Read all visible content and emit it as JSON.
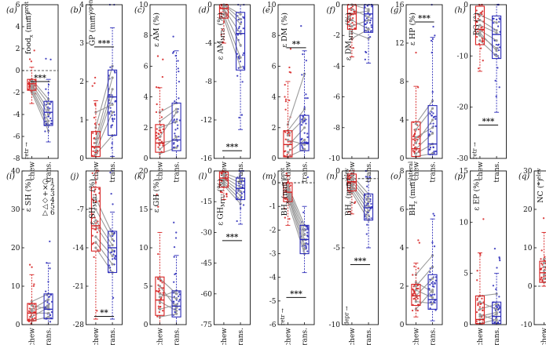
{
  "chart_data": {
    "type": "box",
    "categories": [
      "chew",
      "trans."
    ],
    "colors": {
      "chew": "#d62020",
      "trans.": "#2b2bb8",
      "link": "#9a9a9a"
    },
    "legend": {
      "placement": "top-right",
      "panel": "i",
      "entries": [
        "1",
        "2",
        "3",
        "4",
        "5",
        "6"
      ]
    },
    "panels": [
      {
        "label": "(a)",
        "ylabel": "food",
        "ysub": "x",
        "yunit": " (mm)",
        "ylim": [
          -8,
          6
        ],
        "ticks": [
          -8,
          -6,
          -4,
          -2,
          0,
          2,
          4,
          6
        ],
        "dashed": 0,
        "sig": {
          "text": "***",
          "y": -1
        },
        "dirTop": "prot",
        "dirBottom": "retr",
        "boxes": [
          {
            "q1": -1.8,
            "med": -1.2,
            "q3": -0.8,
            "wlo": -3,
            "whi": 0.3
          },
          {
            "q1": -5,
            "med": -3.8,
            "q3": -2.8,
            "wlo": -6.5,
            "whi": -0.8
          }
        ],
        "pairs": [
          [
            -0.8,
            -2.6
          ],
          [
            -1,
            -3
          ],
          [
            -1.2,
            -3.6
          ],
          [
            -1.4,
            -4
          ],
          [
            -1.6,
            -4.6
          ],
          [
            -1.8,
            -5
          ],
          [
            -2,
            -5.5
          ]
        ]
      },
      {
        "label": "(b)",
        "ylabel": "GP",
        "ysub": "",
        "yunit": " (mm)",
        "ylim": [
          0,
          4
        ],
        "ticks": [
          0,
          1,
          2,
          3,
          4
        ],
        "dashed": null,
        "sig": {
          "text": "***",
          "y": 2.9
        },
        "dirTop": "open",
        "dirBottom": "",
        "boxes": [
          {
            "q1": 0.05,
            "med": 0.3,
            "q3": 0.7,
            "wlo": 0,
            "whi": 1.5
          },
          {
            "q1": 0.6,
            "med": 1.6,
            "q3": 2.3,
            "wlo": 0.05,
            "whi": 3.4
          }
        ],
        "pairs": [
          [
            0.1,
            0.6
          ],
          [
            0.2,
            1.2
          ],
          [
            0.3,
            1.6
          ],
          [
            0.4,
            1.8
          ],
          [
            0.5,
            2.1
          ],
          [
            0.8,
            2.4
          ],
          [
            1.2,
            1.4
          ]
        ]
      },
      {
        "label": "(c)",
        "ylabel": "ε AM",
        "ysub": "",
        "yunit": " (%)",
        "ylim": [
          0,
          10
        ],
        "ticks": [
          0,
          2,
          4,
          6,
          8,
          10
        ],
        "dashed": null,
        "sig": null,
        "dirTop": "",
        "dirBottom": "",
        "boxes": [
          {
            "q1": 0.4,
            "med": 1,
            "q3": 2.2,
            "wlo": 0,
            "whi": 4.6
          },
          {
            "q1": 0.5,
            "med": 1.2,
            "q3": 3.6,
            "wlo": 0,
            "whi": 7
          }
        ],
        "pairs": [
          [
            0.3,
            0.7
          ],
          [
            0.6,
            1.4
          ],
          [
            1,
            1.2
          ],
          [
            1.4,
            3
          ],
          [
            2,
            2.4
          ],
          [
            2.4,
            3.2
          ],
          [
            3,
            3.6
          ]
        ]
      },
      {
        "label": "(d)",
        "ylabel": "ε AM",
        "ysub": "MTU",
        "yunit": " (%)",
        "ylim": [
          -16,
          0
        ],
        "ticks": [
          -16,
          -12,
          -8,
          -4,
          0
        ],
        "dashed": null,
        "sig": {
          "text": "***",
          "y": -15.2
        },
        "dirTop": "",
        "dirBottom": "",
        "boxes": [
          {
            "q1": -1.4,
            "med": -0.4,
            "q3": 0,
            "wlo": -4,
            "whi": 0
          },
          {
            "q1": -6.8,
            "med": -3,
            "q3": -0.8,
            "wlo": -13,
            "whi": 0
          }
        ],
        "pairs": [
          [
            0,
            -1
          ],
          [
            0,
            -1.5
          ],
          [
            -0.2,
            -2
          ],
          [
            -0.4,
            -3
          ],
          [
            -0.6,
            -4.2
          ],
          [
            -1,
            -5.5
          ],
          [
            -1.4,
            -6.5
          ]
        ]
      },
      {
        "label": "(e)",
        "ylabel": "ε DM",
        "ysub": "",
        "yunit": " (%)",
        "ylim": [
          0,
          10
        ],
        "ticks": [
          0,
          2,
          4,
          6,
          8,
          10
        ],
        "dashed": null,
        "sig": {
          "text": "**",
          "y": 7.2
        },
        "dirTop": "",
        "dirBottom": "",
        "boxes": [
          {
            "q1": 0.1,
            "med": 0.9,
            "q3": 1.8,
            "wlo": 0,
            "whi": 5
          },
          {
            "q1": 0.5,
            "med": 1,
            "q3": 2.8,
            "wlo": 0,
            "whi": 7
          }
        ],
        "pairs": [
          [
            0.1,
            0.6
          ],
          [
            0.4,
            1.2
          ],
          [
            0.8,
            2
          ],
          [
            1.2,
            0.9
          ],
          [
            1.5,
            2.6
          ],
          [
            1.8,
            3.2
          ],
          [
            2.2,
            5.5
          ]
        ]
      },
      {
        "label": "(f)",
        "ylabel": "ε DM",
        "ysub": "MTU",
        "yunit": " (%)",
        "ylim": [
          -10,
          0
        ],
        "ticks": [
          -10,
          -8,
          -6,
          -4,
          -2,
          0
        ],
        "dashed": null,
        "sig": null,
        "dirTop": "",
        "dirBottom": "",
        "boxes": [
          {
            "q1": -1.6,
            "med": -0.6,
            "q3": 0,
            "wlo": -3.4,
            "whi": 0
          },
          {
            "q1": -1.8,
            "med": -0.6,
            "q3": 0,
            "wlo": -3.8,
            "whi": 0
          }
        ],
        "pairs": [
          [
            0,
            -0.3
          ],
          [
            -0.3,
            -0.8
          ],
          [
            -0.6,
            -0.4
          ],
          [
            -1,
            -1.6
          ],
          [
            -1.4,
            -1
          ],
          [
            -1.8,
            -2.2
          ],
          [
            -2.2,
            -1.6
          ]
        ]
      },
      {
        "label": "(g)",
        "ylabel": "ε HP",
        "ysub": "",
        "yunit": " (%)",
        "ylim": [
          0,
          16
        ],
        "ticks": [
          0,
          4,
          8,
          12,
          16
        ],
        "dashed": null,
        "sig": {
          "text": "***",
          "y": 14.2
        },
        "dirTop": "",
        "dirBottom": "",
        "boxes": [
          {
            "q1": 0.2,
            "med": 1,
            "q3": 3.8,
            "wlo": 0,
            "whi": 7.5
          },
          {
            "q1": 0.4,
            "med": 1.5,
            "q3": 5.5,
            "wlo": 0,
            "whi": 12.6
          }
        ],
        "pairs": [
          [
            0.2,
            0.5
          ],
          [
            0.5,
            1.5
          ],
          [
            1,
            2.6
          ],
          [
            1.6,
            4
          ],
          [
            2.2,
            3.2
          ],
          [
            3,
            5.2
          ],
          [
            3.6,
            6
          ]
        ]
      },
      {
        "label": "(h)",
        "ylabel": "PG",
        "ysub": "",
        "yunit": " (°)",
        "ylim": [
          -30,
          0
        ],
        "ticks": [
          -30,
          -20,
          -10,
          0
        ],
        "dashed": null,
        "sig": {
          "text": "***",
          "y": -23.5
        },
        "dirTop": "",
        "dirBottom": "retr",
        "boxes": [
          {
            "q1": -7.8,
            "med": -4.8,
            "q3": -0.3,
            "wlo": -13,
            "whi": 0
          },
          {
            "q1": -10.5,
            "med": -5.8,
            "q3": -2.2,
            "wlo": -21,
            "whi": 0
          }
        ],
        "pairs": [
          [
            -2,
            -3.5
          ],
          [
            -3,
            -5
          ],
          [
            -4,
            -5.5
          ],
          [
            -5,
            -7
          ],
          [
            -6,
            -8.5
          ],
          [
            -7,
            -10
          ],
          [
            -5.5,
            -9
          ]
        ]
      },
      {
        "label": "(i)",
        "ylabel": "ε SH",
        "ysub": "",
        "yunit": " (%)",
        "ylim": [
          0,
          40
        ],
        "ticks": [
          0,
          10,
          20,
          30,
          40
        ],
        "dashed": null,
        "sig": null,
        "dirTop": "",
        "dirBottom": "",
        "boxes": [
          {
            "q1": 1,
            "med": 3,
            "q3": 5.5,
            "wlo": 0,
            "whi": 13
          },
          {
            "q1": 1.5,
            "med": 4,
            "q3": 8,
            "wlo": 0,
            "whi": 16
          }
        ],
        "pairs": [
          [
            1,
            2
          ],
          [
            2,
            4.5
          ],
          [
            3,
            3
          ],
          [
            4,
            6.5
          ],
          [
            5,
            4
          ],
          [
            6,
            8
          ],
          [
            3.5,
            5
          ]
        ]
      },
      {
        "label": "(j)",
        "ylabel": "ε SH",
        "ysub": "MTU",
        "yunit": " (%)",
        "ylim": [
          -28,
          0
        ],
        "ticks": [
          -28,
          -21,
          -14,
          -7
        ],
        "dashed": null,
        "sig": {
          "text": "**",
          "y": -26.5
        },
        "dirTop": "",
        "dirBottom": "",
        "boxes": [
          {
            "q1": -14.6,
            "med": -10,
            "q3": -3,
            "wlo": -27,
            "whi": 0
          },
          {
            "q1": -18.5,
            "med": -14,
            "q3": -11,
            "wlo": -27,
            "whi": -7.5
          }
        ],
        "pairs": [
          [
            -5,
            -11.5
          ],
          [
            -7,
            -12.5
          ],
          [
            -9,
            -13.5
          ],
          [
            -10,
            -14.5
          ],
          [
            -12,
            -15.5
          ],
          [
            -13,
            -17
          ],
          [
            -14,
            -18.5
          ]
        ]
      },
      {
        "label": "(k)",
        "ylabel": "ε GH",
        "ysub": "",
        "yunit": " (%)",
        "ylim": [
          0,
          20
        ],
        "ticks": [
          0,
          5,
          10,
          15,
          20
        ],
        "dashed": null,
        "sig": null,
        "dirTop": "",
        "dirBottom": "",
        "boxes": [
          {
            "q1": 1.2,
            "med": 3.2,
            "q3": 6.2,
            "wlo": 0,
            "whi": 12
          },
          {
            "q1": 1,
            "med": 2.4,
            "q3": 4.4,
            "wlo": 0,
            "whi": 9
          }
        ],
        "pairs": [
          [
            1,
            1.4
          ],
          [
            2,
            2.6
          ],
          [
            3,
            1.8
          ],
          [
            4,
            3.4
          ],
          [
            5,
            2.2
          ],
          [
            6,
            4
          ],
          [
            3.6,
            4.4
          ]
        ]
      },
      {
        "label": "(l)",
        "ylabel": "ε GH",
        "ysub": "MTU",
        "yunit": " (%)",
        "ylim": [
          -75,
          0
        ],
        "ticks": [
          -75,
          -60,
          -45,
          -30,
          -15,
          0
        ],
        "dashed": null,
        "sig": {
          "text": "***",
          "y": -34
        },
        "dirTop": "",
        "dirBottom": "",
        "boxes": [
          {
            "q1": -8,
            "med": -3.5,
            "q3": -0.5,
            "wlo": -14,
            "whi": 0
          },
          {
            "q1": -14,
            "med": -8.5,
            "q3": -3.5,
            "wlo": -26,
            "whi": 0
          }
        ],
        "pairs": [
          [
            -1,
            -4
          ],
          [
            -2,
            -6
          ],
          [
            -3,
            -8
          ],
          [
            -4,
            -10
          ],
          [
            -5,
            -12
          ],
          [
            -6,
            -14
          ],
          [
            -7,
            -16
          ]
        ]
      },
      {
        "label": "(m)",
        "ylabel": "BH",
        "ysub": "x",
        "yunit": " (mm)",
        "ylim": [
          -6,
          0.5
        ],
        "ticks": [
          -6,
          -5,
          -4,
          -3,
          -2,
          -1,
          0
        ],
        "dashed": 0,
        "sig": {
          "text": "***",
          "y": -4.85
        },
        "dirTop": "prot",
        "dirBottom": "retr",
        "boxes": [
          {
            "q1": -0.8,
            "med": -0.4,
            "q3": 0,
            "wlo": -1.8,
            "whi": 0.3
          },
          {
            "q1": -3,
            "med": -2.4,
            "q3": -1.8,
            "wlo": -3.8,
            "whi": -1
          }
        ],
        "pairs": [
          [
            -0.1,
            -1.8
          ],
          [
            -0.2,
            -2
          ],
          [
            -0.3,
            -2.2
          ],
          [
            -0.4,
            -2.4
          ],
          [
            -0.5,
            -2.6
          ],
          [
            -0.6,
            -2.8
          ],
          [
            -0.8,
            -3
          ]
        ]
      },
      {
        "label": "(n)",
        "ylabel": "BH",
        "ysub": "y",
        "yunit": " (mm)",
        "ylim": [
          -10,
          0
        ],
        "ticks": [
          -10,
          -5,
          0
        ],
        "dashed": -0.5,
        "sig": {
          "text": "***",
          "y": -6.1
        },
        "dirTop": "elev",
        "dirBottom": "depr",
        "boxes": [
          {
            "q1": -1.3,
            "med": -0.7,
            "q3": -0.2,
            "wlo": -2.8,
            "whi": 0
          },
          {
            "q1": -3.2,
            "med": -2.4,
            "q3": -1.5,
            "wlo": -5,
            "whi": -0.4
          }
        ],
        "pairs": [
          [
            -0.3,
            -1.5
          ],
          [
            -0.5,
            -1.8
          ],
          [
            -0.7,
            -2
          ],
          [
            -0.9,
            -2.3
          ],
          [
            -1,
            -2.6
          ],
          [
            -1.2,
            -2.9
          ],
          [
            -1.4,
            -3.2
          ]
        ]
      },
      {
        "label": "(o)",
        "ylabel": "BH",
        "ysub": "z",
        "yunit": " (mm)",
        "ylim": [
          0,
          8
        ],
        "ticks": [
          0,
          2,
          4,
          6,
          8
        ],
        "dashed": null,
        "sig": null,
        "dirTop": "lateral",
        "dirBottom": "",
        "boxes": [
          {
            "q1": 1,
            "med": 1.5,
            "q3": 2.1,
            "wlo": 0.4,
            "whi": 3.2
          },
          {
            "q1": 0.8,
            "med": 1.3,
            "q3": 2.6,
            "wlo": 0.2,
            "whi": 5.5
          }
        ],
        "pairs": [
          [
            0.8,
            1.8
          ],
          [
            1.2,
            1.1
          ],
          [
            1.5,
            2.4
          ],
          [
            1.8,
            1.4
          ],
          [
            2,
            3
          ],
          [
            2.2,
            1.7
          ],
          [
            2.6,
            3.6
          ]
        ]
      },
      {
        "label": "(p)",
        "ylabel": "ε EP",
        "ysub": "",
        "yunit": " (%)",
        "ylim": [
          0,
          15
        ],
        "ticks": [
          0,
          5,
          10,
          15
        ],
        "dashed": null,
        "sig": null,
        "dirTop": "",
        "dirBottom": "",
        "boxes": [
          {
            "q1": 0.1,
            "med": 0.5,
            "q3": 2.8,
            "wlo": 0,
            "whi": 7
          },
          {
            "q1": 0.1,
            "med": 0.8,
            "q3": 2.2,
            "wlo": 0,
            "whi": 5
          }
        ],
        "pairs": [
          [
            0.1,
            0.5
          ],
          [
            0.5,
            1
          ],
          [
            1,
            0.4
          ],
          [
            1.5,
            2
          ],
          [
            2.2,
            1.5
          ],
          [
            2.8,
            3
          ],
          [
            0.8,
            1.2
          ]
        ]
      },
      {
        "label": "(q)",
        "ylabel": "NC",
        "ysub": "",
        "yunit": " (°)",
        "ylim": [
          -10,
          30
        ],
        "ticks": [
          -10,
          0,
          10,
          20,
          30
        ],
        "dashed": 0,
        "sig": null,
        "dirTop": "elev",
        "dirBottom": "",
        "boxes": [
          {
            "q1": 1,
            "med": 3.5,
            "q3": 6.5,
            "wlo": 0,
            "whi": 14
          },
          {
            "q1": 2.5,
            "med": 5,
            "q3": 8,
            "wlo": 0,
            "whi": 15
          }
        ],
        "pairs": [
          [
            1,
            3
          ],
          [
            2,
            4
          ],
          [
            3,
            6
          ],
          [
            4,
            5.5
          ],
          [
            5,
            7
          ],
          [
            6,
            8.5
          ],
          [
            7,
            9
          ]
        ]
      }
    ]
  }
}
